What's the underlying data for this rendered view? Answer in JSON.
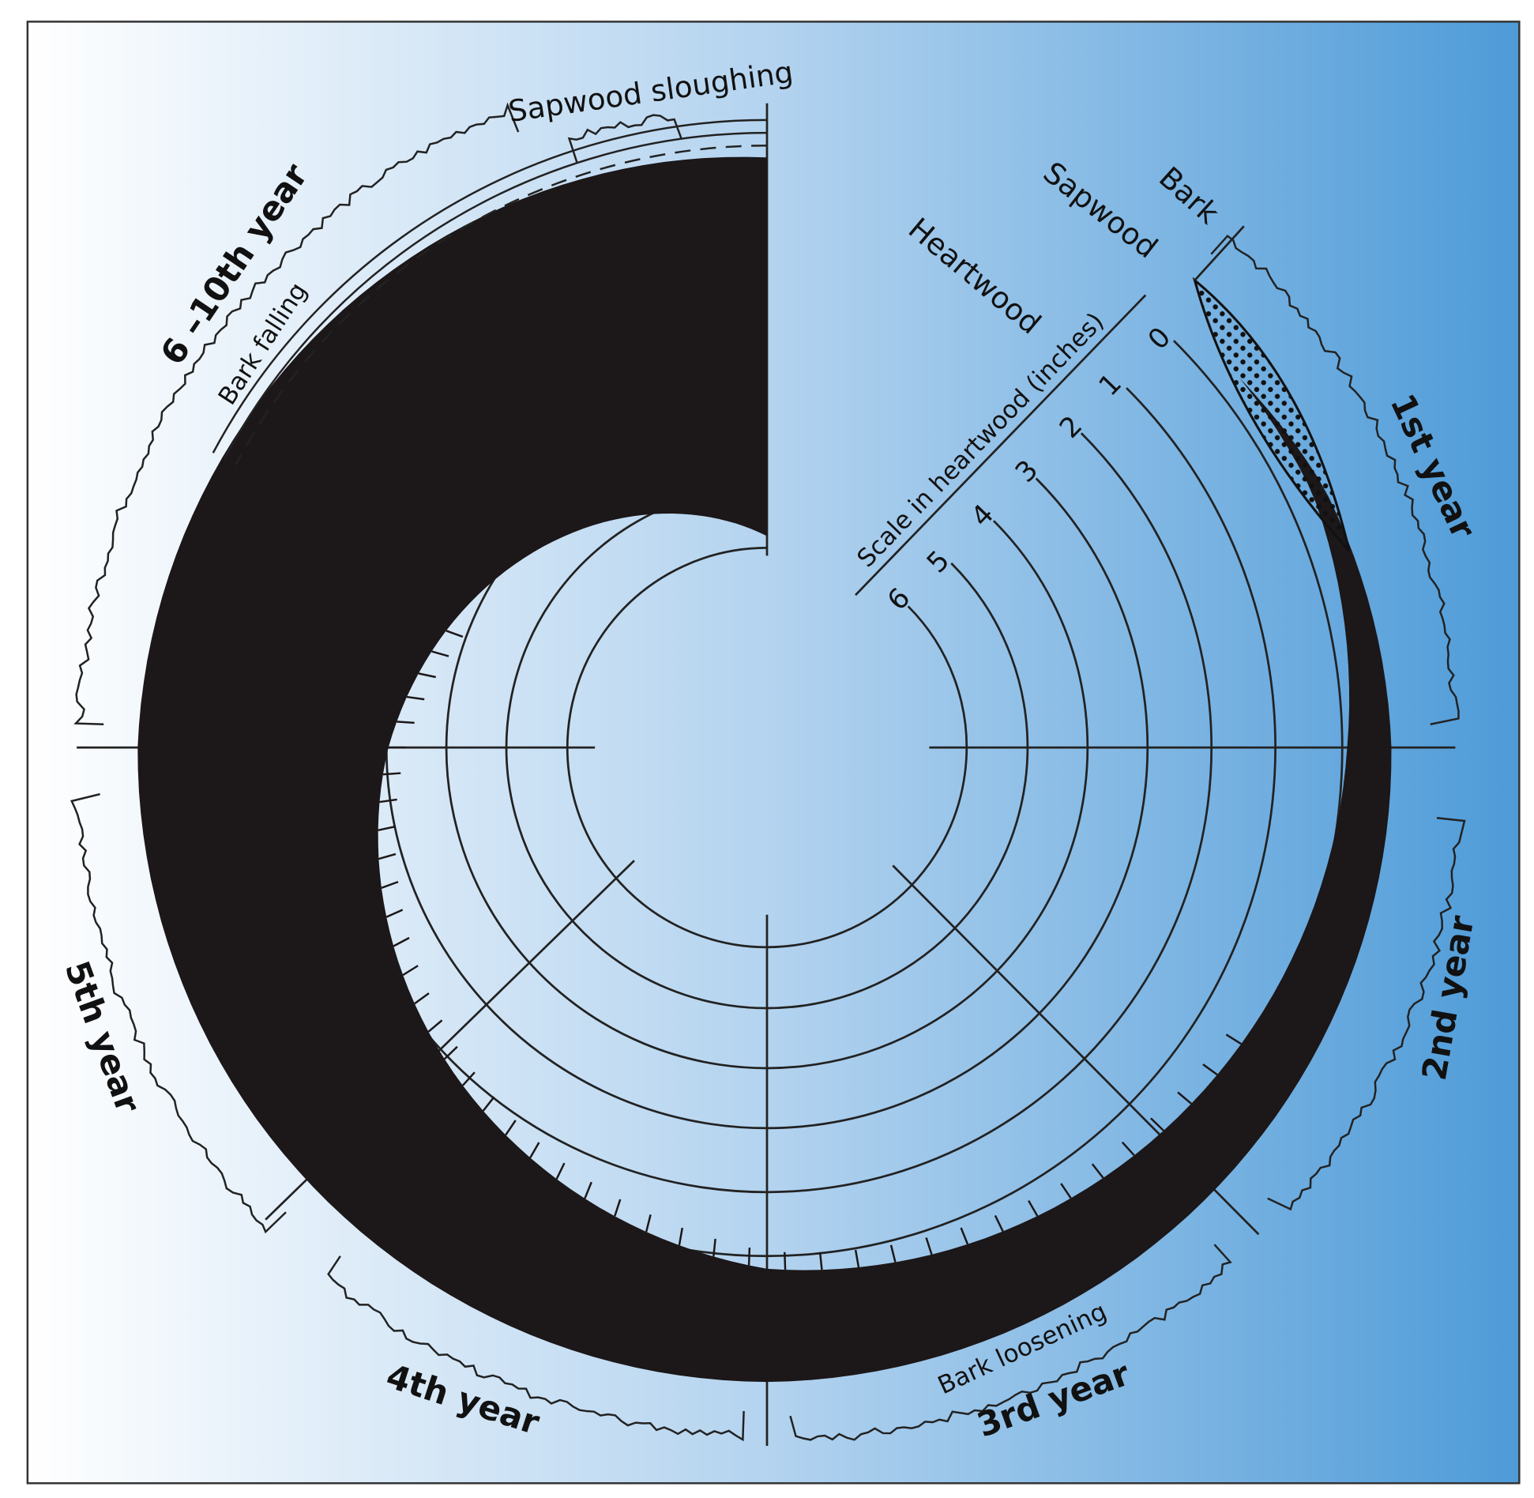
{
  "labels": {
    "sapwood_sloughing": "Sapwood sloughing",
    "bark_falling": "Bark falling",
    "bark_loosening": "Bark loosening",
    "bark": "Bark",
    "sapwood": "Sapwood",
    "heartwood": "Heartwood"
  },
  "scale": {
    "title": "Scale in heartwood (inches)",
    "ticks": [
      "0",
      "1",
      "2",
      "3",
      "4",
      "5",
      "6"
    ]
  },
  "years": [
    "1st year",
    "2nd year",
    "3rd year",
    "4th year",
    "5th year",
    "6 –10th year"
  ]
}
